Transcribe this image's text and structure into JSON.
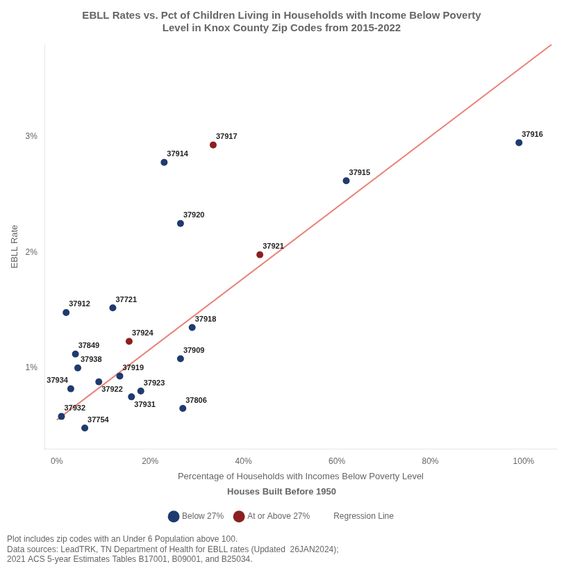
{
  "chart_data": {
    "type": "scatter",
    "title": "EBLL Rates vs. Pct of Children Living in Households with Income Below Poverty\nLevel in Knox County Zip Codes from 2015-2022",
    "xlabel": "Percentage of Households with Incomes Below Poverty Level",
    "ylabel": "EBLL Rate",
    "legend_title": "Houses Built Before 1950",
    "legend": "bottom",
    "grid": false,
    "footnotes": [
      "Plot includes zip codes with an Under 6 Population above 100.",
      "Data sources: LeadTRK, TN Department of Health for EBLL rates (Updated  26JAN2024);\n2021 ACS 5-year Estimates Tables B17001, B09001, and B25034."
    ],
    "series": [
      {
        "name": "Below 27%",
        "color": "#1f3a6e",
        "marker": "circle",
        "x": [
          0.99,
          0.62,
          0.23,
          0.265,
          0.02,
          0.12,
          0.29,
          0.265,
          0.04,
          0.045,
          0.135,
          0.09,
          0.03,
          0.18,
          0.16,
          0.27,
          0.01,
          0.06
        ],
        "values": [
          0.0295,
          0.0262,
          0.0278,
          0.0225,
          0.0148,
          0.0152,
          0.0135,
          0.0108,
          0.0112,
          0.01,
          0.0093,
          0.0088,
          0.0082,
          0.008,
          0.0075,
          0.0065,
          0.0058,
          0.0048
        ],
        "labels": [
          "37916",
          "37915",
          "37914",
          "37920",
          "37912",
          "37721",
          "37918",
          "37909",
          "37849",
          "37938",
          "37919",
          "37922",
          "37934",
          "37923",
          "37931",
          "37806",
          "37932",
          "37754"
        ]
      },
      {
        "name": "At or Above 27%",
        "color": "#8b2020",
        "marker": "circle",
        "x": [
          0.335,
          0.435,
          0.155
        ],
        "values": [
          0.0293,
          0.0198,
          0.0123
        ],
        "labels": [
          "37917",
          "37921",
          "37924"
        ]
      },
      {
        "name": "Regression Line",
        "type": "line",
        "color": "#e8837a",
        "line_style": "solid",
        "x": [
          0.0,
          1.06
        ],
        "values": [
          0.0055,
          0.038
        ]
      }
    ],
    "xlim": [
      -0.025,
      1.07
    ],
    "ylim": [
      0.003,
      0.038
    ],
    "xticks": [
      {
        "value": 0.0,
        "label": "0%"
      },
      {
        "value": 0.2,
        "label": "20%"
      },
      {
        "value": 0.4,
        "label": "40%"
      },
      {
        "value": 0.6,
        "label": "60%"
      },
      {
        "value": 0.8,
        "label": "80%"
      },
      {
        "value": 1.0,
        "label": "100%"
      }
    ],
    "yticks": [
      {
        "value": 0.01,
        "label": "1%"
      },
      {
        "value": 0.02,
        "label": "2%"
      },
      {
        "value": 0.03,
        "label": "3%"
      }
    ]
  }
}
